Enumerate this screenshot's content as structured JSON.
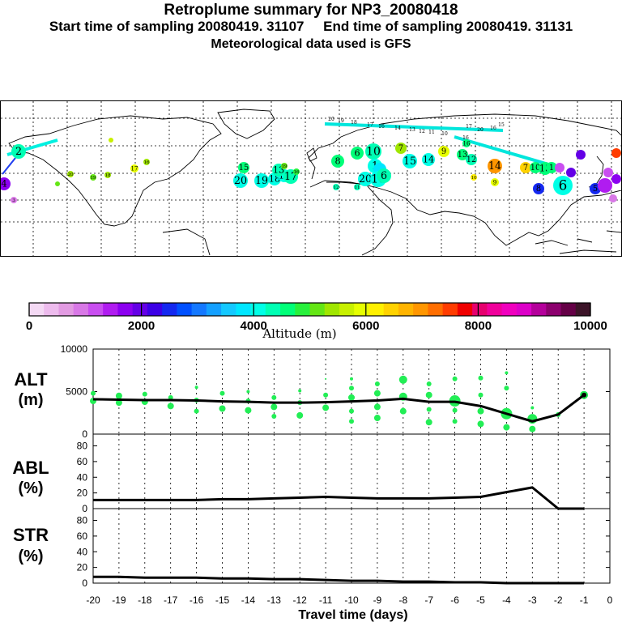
{
  "header": {
    "title": "Retroplume summary for NP3_20080418",
    "start_label": "Start time of sampling 20080419. 31107",
    "end_label": "End time of sampling 20080419. 31131",
    "met_label": "Meteorological data used is GFS"
  },
  "colorbar": {
    "colors": [
      "#f4d9f4",
      "#edbbed",
      "#e29be2",
      "#d878e6",
      "#c94ef0",
      "#b01cf0",
      "#8c00f0",
      "#6400e6",
      "#3c00e6",
      "#1428f0",
      "#0050ff",
      "#1478ff",
      "#14a0ff",
      "#14c8ff",
      "#00e6ff",
      "#00ffe6",
      "#00ffb4",
      "#00ff78",
      "#28f03c",
      "#64e614",
      "#a0e600",
      "#c8f000",
      "#e6ff00",
      "#fff000",
      "#ffd200",
      "#ffb400",
      "#ff9600",
      "#ff6e00",
      "#ff3c00",
      "#f00000",
      "#e6006e",
      "#f0009b",
      "#f000be",
      "#dc00c8",
      "#b4009b",
      "#8c006e",
      "#640046",
      "#3c1428"
    ],
    "tick_labels": [
      "0",
      "2000",
      "4000",
      "6000",
      "8000",
      "10000"
    ],
    "label": "Altitude (m)"
  },
  "map_labels": [
    "20",
    "19",
    "18",
    "17",
    "16",
    "15",
    "14",
    "13",
    "12",
    "11",
    "10",
    "9",
    "8",
    "7",
    "6",
    "5",
    "4",
    "3",
    "2",
    "1"
  ],
  "panels": {
    "alt": {
      "name": "ALT",
      "unit": "(m)"
    },
    "abl": {
      "name": "ABL",
      "unit": "(%)"
    },
    "str": {
      "name": "STR",
      "unit": "(%)"
    }
  },
  "xaxis_label": "Travel time (days)",
  "chart_data": {
    "type": "line",
    "xlabel": "Travel time (days)",
    "x": [
      -20,
      -19,
      -18,
      -17,
      -16,
      -15,
      -14,
      -13,
      -12,
      -11,
      -10,
      -9,
      -8,
      -7,
      -6,
      -5,
      -4,
      -3,
      -2,
      -1
    ],
    "xlim": [
      -20,
      0
    ],
    "x_tick_labels": [
      "-20",
      "-19",
      "-18",
      "-17",
      "-16",
      "-15",
      "-14",
      "-13",
      "-12",
      "-11",
      "-10",
      "-9",
      "-8",
      "-7",
      "-6",
      "-5",
      "-4",
      "-3",
      "-2",
      "-1",
      "0"
    ],
    "panels": [
      {
        "name": "ALT",
        "ylabel": "(m)",
        "ylim": [
          0,
          10000
        ],
        "y_tick_labels": [
          "10000",
          "5000",
          "0"
        ],
        "y_ticks": [
          10000,
          5000,
          0
        ],
        "series": [
          {
            "name": "mean altitude",
            "values": [
              4100,
              4050,
              4000,
              4000,
              3950,
              3850,
              3800,
              3700,
              3700,
              3750,
              3850,
              3950,
              4150,
              3800,
              3800,
              3300,
              2400,
              1500,
              2300,
              4600
            ]
          }
        ],
        "points": [
          {
            "x": -20,
            "y": 4800,
            "s": 3
          },
          {
            "x": -20,
            "y": 3900,
            "s": 4
          },
          {
            "x": -19,
            "y": 4500,
            "s": 4
          },
          {
            "x": -19,
            "y": 3700,
            "s": 4
          },
          {
            "x": -18,
            "y": 4700,
            "s": 3
          },
          {
            "x": -18,
            "y": 3800,
            "s": 4
          },
          {
            "x": -17,
            "y": 4300,
            "s": 3
          },
          {
            "x": -17,
            "y": 3300,
            "s": 4
          },
          {
            "x": -16,
            "y": 5500,
            "s": 2
          },
          {
            "x": -16,
            "y": 4000,
            "s": 3
          },
          {
            "x": -16,
            "y": 2700,
            "s": 3
          },
          {
            "x": -15,
            "y": 4800,
            "s": 3
          },
          {
            "x": -15,
            "y": 3000,
            "s": 4
          },
          {
            "x": -14,
            "y": 5000,
            "s": 2
          },
          {
            "x": -14,
            "y": 3900,
            "s": 3
          },
          {
            "x": -14,
            "y": 2800,
            "s": 4
          },
          {
            "x": -13,
            "y": 4300,
            "s": 3
          },
          {
            "x": -13,
            "y": 3200,
            "s": 4
          },
          {
            "x": -13,
            "y": 2100,
            "s": 3
          },
          {
            "x": -12,
            "y": 5100,
            "s": 2
          },
          {
            "x": -12,
            "y": 3700,
            "s": 3
          },
          {
            "x": -12,
            "y": 2200,
            "s": 4
          },
          {
            "x": -11,
            "y": 6500,
            "s": 1
          },
          {
            "x": -11,
            "y": 4600,
            "s": 3
          },
          {
            "x": -11,
            "y": 3100,
            "s": 4
          },
          {
            "x": -10,
            "y": 6500,
            "s": 2
          },
          {
            "x": -10,
            "y": 5400,
            "s": 3
          },
          {
            "x": -10,
            "y": 4300,
            "s": 4
          },
          {
            "x": -10,
            "y": 2700,
            "s": 3
          },
          {
            "x": -10,
            "y": 1500,
            "s": 3
          },
          {
            "x": -9,
            "y": 5900,
            "s": 3
          },
          {
            "x": -9,
            "y": 4800,
            "s": 4
          },
          {
            "x": -9,
            "y": 3200,
            "s": 4
          },
          {
            "x": -9,
            "y": 1900,
            "s": 4
          },
          {
            "x": -8,
            "y": 6400,
            "s": 5
          },
          {
            "x": -8,
            "y": 4400,
            "s": 5
          },
          {
            "x": -8,
            "y": 2700,
            "s": 4
          },
          {
            "x": -7,
            "y": 5900,
            "s": 3
          },
          {
            "x": -7,
            "y": 4600,
            "s": 4
          },
          {
            "x": -7,
            "y": 2900,
            "s": 3
          },
          {
            "x": -7,
            "y": 1400,
            "s": 4
          },
          {
            "x": -6,
            "y": 6500,
            "s": 3
          },
          {
            "x": -6,
            "y": 3900,
            "s": 7
          },
          {
            "x": -6,
            "y": 2800,
            "s": 3
          },
          {
            "x": -6,
            "y": 1500,
            "s": 3
          },
          {
            "x": -5,
            "y": 6600,
            "s": 3
          },
          {
            "x": -5,
            "y": 4600,
            "s": 3
          },
          {
            "x": -5,
            "y": 2700,
            "s": 4
          },
          {
            "x": -5,
            "y": 1200,
            "s": 4
          },
          {
            "x": -4,
            "y": 7200,
            "s": 2
          },
          {
            "x": -4,
            "y": 5400,
            "s": 3
          },
          {
            "x": -4,
            "y": 2400,
            "s": 7
          },
          {
            "x": -4,
            "y": 800,
            "s": 4
          },
          {
            "x": -3,
            "y": 3100,
            "s": 2
          },
          {
            "x": -3,
            "y": 1800,
            "s": 6
          },
          {
            "x": -3,
            "y": 600,
            "s": 4
          },
          {
            "x": -2,
            "y": 2300,
            "s": 3
          },
          {
            "x": -1,
            "y": 4600,
            "s": 5
          }
        ]
      },
      {
        "name": "ABL",
        "ylabel": "(%)",
        "ylim": [
          0,
          95
        ],
        "y_tick_labels": [
          "80",
          "60",
          "40",
          "20",
          "0"
        ],
        "y_ticks": [
          80,
          60,
          40,
          20,
          0
        ],
        "series": [
          {
            "name": "ABL fraction",
            "values": [
              11,
              11,
              11,
              11,
              11,
              12,
              12,
              13,
              14,
              15,
              14,
              13,
              13,
              13,
              14,
              15,
              21,
              27,
              0,
              0
            ]
          }
        ]
      },
      {
        "name": "STR",
        "ylabel": "(%)",
        "ylim": [
          0,
          95
        ],
        "y_tick_labels": [
          "80",
          "60",
          "40",
          "20",
          "0"
        ],
        "y_ticks": [
          80,
          60,
          40,
          20,
          0
        ],
        "series": [
          {
            "name": "STR fraction",
            "values": [
              8,
              8,
              7,
              7,
              7,
              6,
              6,
              5,
              5,
              4,
              3,
              3,
              2,
              2,
              1,
              1,
              0,
              0,
              0,
              0
            ]
          }
        ]
      }
    ]
  }
}
